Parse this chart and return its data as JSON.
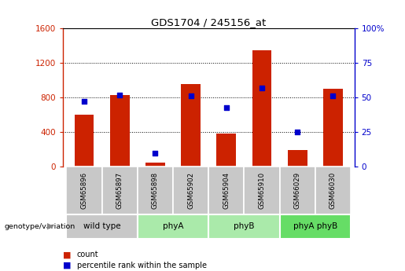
{
  "title": "GDS1704 / 245156_at",
  "samples": [
    "GSM65896",
    "GSM65897",
    "GSM65898",
    "GSM65902",
    "GSM65904",
    "GSM65910",
    "GSM66029",
    "GSM66030"
  ],
  "counts": [
    600,
    830,
    50,
    960,
    380,
    1350,
    195,
    900
  ],
  "percentiles": [
    47,
    52,
    10,
    51,
    43,
    57,
    25,
    51
  ],
  "bar_color": "#cc2200",
  "dot_color": "#0000cc",
  "ylim_left": [
    0,
    1600
  ],
  "ylim_right": [
    0,
    100
  ],
  "yticks_left": [
    0,
    400,
    800,
    1200,
    1600
  ],
  "yticks_right": [
    0,
    25,
    50,
    75,
    100
  ],
  "groups": [
    {
      "label": "wild type",
      "indices": [
        0,
        1
      ],
      "color": "#c8c8c8"
    },
    {
      "label": "phyA",
      "indices": [
        2,
        3
      ],
      "color": "#aaeaaa"
    },
    {
      "label": "phyB",
      "indices": [
        4,
        5
      ],
      "color": "#aaeaaa"
    },
    {
      "label": "phyA phyB",
      "indices": [
        6,
        7
      ],
      "color": "#66dd66"
    }
  ],
  "group_header": "genotype/variation",
  "legend_count_label": "count",
  "legend_pct_label": "percentile rank within the sample",
  "left_axis_color": "#cc2200",
  "right_axis_color": "#0000cc",
  "tick_label_bg": "#c8c8c8",
  "grid_dotted_values": [
    400,
    800,
    1200
  ]
}
